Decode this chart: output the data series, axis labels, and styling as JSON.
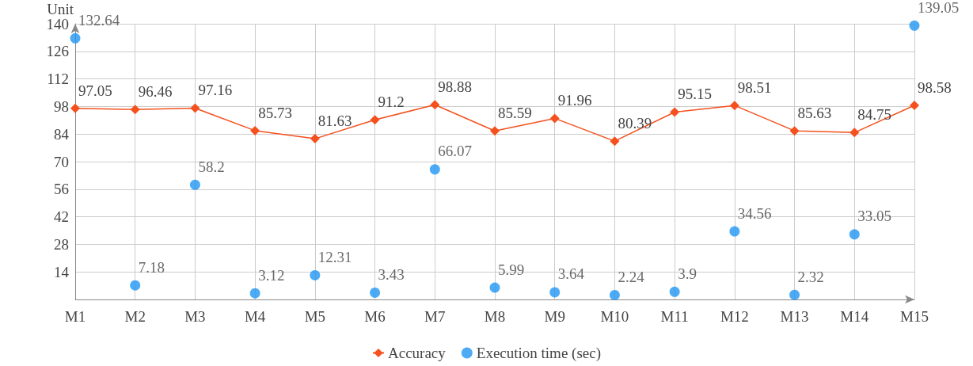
{
  "chart_data": {
    "type": "line",
    "ylabel": "Unit",
    "categories": [
      "M1",
      "M2",
      "M3",
      "M4",
      "M5",
      "M6",
      "M7",
      "M8",
      "M9",
      "M10",
      "M11",
      "M12",
      "M13",
      "M14",
      "M15"
    ],
    "series": [
      {
        "name": "Accuracy",
        "marker": "diamond",
        "color": "#f4511e",
        "values": [
          97.05,
          96.46,
          97.16,
          85.73,
          81.63,
          91.2,
          98.88,
          85.59,
          91.96,
          80.39,
          95.15,
          98.51,
          85.63,
          84.75,
          98.58
        ]
      },
      {
        "name": "Execution time (sec)",
        "type": "scatter",
        "marker": "circle",
        "color": "#2196f3",
        "values": [
          132.64,
          7.18,
          58.2,
          3.12,
          12.31,
          3.43,
          66.07,
          5.99,
          3.64,
          2.24,
          3.9,
          34.56,
          2.32,
          33.05,
          139.05
        ]
      }
    ],
    "ylim": [
      0,
      140
    ],
    "yticks": [
      {
        "value": 0,
        "label": null
      },
      14,
      28,
      42,
      56,
      70,
      84,
      98,
      112,
      126,
      140
    ],
    "grid": true,
    "legend": "bottom",
    "data_labels": true,
    "line_style": "solid"
  }
}
